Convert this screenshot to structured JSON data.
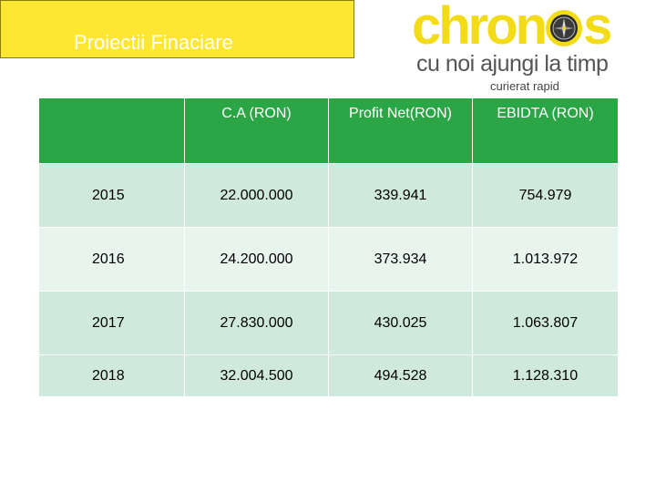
{
  "title": "Proiectii Finaciare",
  "logo": {
    "brand_before": "chron",
    "brand_after": "s",
    "tagline": "cu noi ajungi la timp",
    "sub": "curierat rapid",
    "accent_color": "#f3dc17"
  },
  "table": {
    "headers": [
      "",
      "C.A (RON)",
      "Profit Net(RON)",
      "EBIDTA (RON)"
    ],
    "rows": [
      {
        "year": "2015",
        "ca": "22.000.000",
        "profit": "339.941",
        "ebidta": "754.979"
      },
      {
        "year": "2016",
        "ca": "24.200.000",
        "profit": "373.934",
        "ebidta": "1.013.972"
      },
      {
        "year": "2017",
        "ca": "27.830.000",
        "profit": "430.025",
        "ebidta": "1.063.807"
      },
      {
        "year": "2018",
        "ca": "32.004.500",
        "profit": "494.528",
        "ebidta": "1.128.310"
      }
    ]
  },
  "colors": {
    "header_green": "#2aa646",
    "row_light": "#d0e9dd",
    "row_lighter": "#e8f4ee",
    "title_yellow": "#fee732"
  }
}
